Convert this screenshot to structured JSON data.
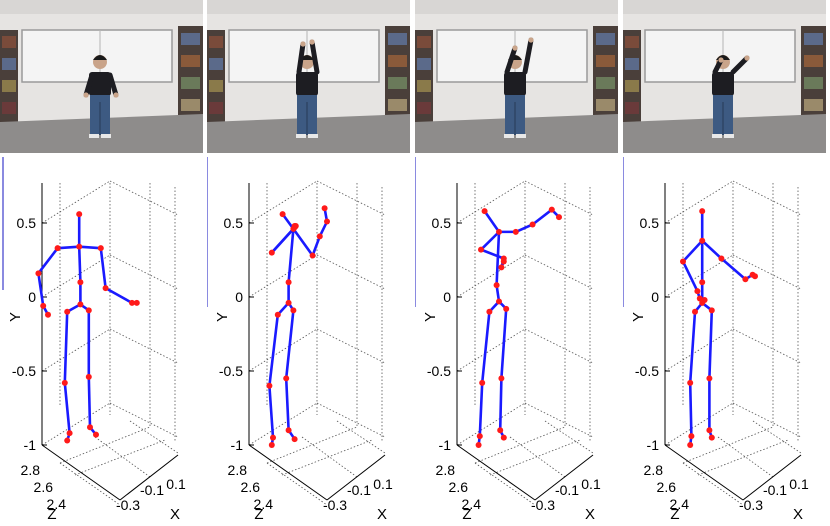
{
  "panels": [
    {
      "id": "frame-1",
      "photo": {
        "pose": "arms-down"
      },
      "skeleton": {
        "joints": {
          "head": [
            0.06,
            0.56,
            2.6
          ],
          "neck": [
            0.06,
            0.34,
            2.6
          ],
          "spine": [
            0.07,
            0.1,
            2.6
          ],
          "hip": [
            0.07,
            -0.05,
            2.6
          ],
          "l_shoulder": [
            -0.12,
            0.33,
            2.6
          ],
          "l_elbow": [
            -0.28,
            0.16,
            2.6
          ],
          "l_wrist": [
            -0.24,
            -0.06,
            2.6
          ],
          "l_hand": [
            -0.2,
            -0.12,
            2.6
          ],
          "r_shoulder": [
            0.24,
            0.33,
            2.6
          ],
          "r_elbow": [
            0.28,
            0.06,
            2.6
          ],
          "r_wrist": [
            0.5,
            -0.04,
            2.6
          ],
          "r_hand": [
            0.54,
            -0.04,
            2.6
          ],
          "l_hip": [
            -0.04,
            -0.1,
            2.6
          ],
          "l_knee": [
            -0.06,
            -0.58,
            2.6
          ],
          "l_ankle": [
            -0.02,
            -0.92,
            2.6
          ],
          "l_foot": [
            -0.04,
            -0.97,
            2.6
          ],
          "r_hip": [
            0.14,
            -0.09,
            2.6
          ],
          "r_knee": [
            0.14,
            -0.54,
            2.6
          ],
          "r_ankle": [
            0.15,
            -0.88,
            2.6
          ],
          "r_foot": [
            0.2,
            -0.93,
            2.6
          ]
        }
      }
    },
    {
      "id": "frame-2",
      "photo": {
        "pose": "arms-up"
      },
      "skeleton": {
        "joints": {
          "head": [
            0.03,
            0.56,
            2.6
          ],
          "neck": [
            0.12,
            0.46,
            2.6
          ],
          "spine": [
            0.08,
            0.1,
            2.6
          ],
          "hip": [
            0.08,
            -0.04,
            2.6
          ],
          "l_shoulder": [
            -0.06,
            0.3,
            2.6
          ],
          "l_elbow": [
            0.13,
            0.47,
            2.6
          ],
          "l_wrist": [
            0.14,
            0.48,
            2.6
          ],
          "l_hand": [
            0.13,
            0.48,
            2.6
          ],
          "r_shoulder": [
            0.28,
            0.28,
            2.6
          ],
          "r_elbow": [
            0.34,
            0.41,
            2.6
          ],
          "r_wrist": [
            0.4,
            0.51,
            2.6
          ],
          "r_hand": [
            0.38,
            0.6,
            2.6
          ],
          "l_hip": [
            -0.01,
            -0.12,
            2.6
          ],
          "l_knee": [
            -0.08,
            -0.6,
            2.6
          ],
          "l_ankle": [
            -0.05,
            -0.95,
            2.6
          ],
          "l_foot": [
            -0.06,
            -1.0,
            2.6
          ],
          "r_hip": [
            0.12,
            -0.09,
            2.6
          ],
          "r_knee": [
            0.06,
            -0.55,
            2.6
          ],
          "r_ankle": [
            0.08,
            -0.9,
            2.6
          ],
          "r_foot": [
            0.13,
            -0.96,
            2.6
          ]
        }
      }
    },
    {
      "id": "frame-3",
      "photo": {
        "pose": "arm-raised"
      },
      "skeleton": {
        "joints": {
          "head": [
            -0.02,
            0.58,
            2.6
          ],
          "neck": [
            0.1,
            0.44,
            2.6
          ],
          "spine": [
            0.08,
            0.08,
            2.6
          ],
          "hip": [
            0.1,
            -0.03,
            2.6
          ],
          "l_shoulder": [
            -0.05,
            0.32,
            2.6
          ],
          "l_elbow": [
            0.14,
            0.26,
            2.6
          ],
          "l_wrist": [
            0.12,
            0.2,
            2.6
          ],
          "l_hand": [
            0.14,
            0.24,
            2.6
          ],
          "r_shoulder": [
            0.24,
            0.44,
            2.6
          ],
          "r_elbow": [
            0.38,
            0.49,
            2.6
          ],
          "r_wrist": [
            0.54,
            0.59,
            2.6
          ],
          "r_hand": [
            0.6,
            0.54,
            2.6
          ],
          "l_hip": [
            0.02,
            -0.1,
            2.6
          ],
          "l_knee": [
            -0.04,
            -0.58,
            2.6
          ],
          "l_ankle": [
            -0.06,
            -0.94,
            2.6
          ],
          "l_foot": [
            -0.07,
            -1.0,
            2.6
          ],
          "r_hip": [
            0.16,
            -0.08,
            2.6
          ],
          "r_knee": [
            0.12,
            -0.55,
            2.6
          ],
          "r_ankle": [
            0.11,
            -0.9,
            2.6
          ],
          "r_foot": [
            0.14,
            -0.95,
            2.6
          ]
        }
      }
    },
    {
      "id": "frame-4",
      "photo": {
        "pose": "arm-out"
      },
      "skeleton": {
        "joints": {
          "head": [
            0.06,
            0.58,
            2.6
          ],
          "neck": [
            0.06,
            0.38,
            2.6
          ],
          "spine": [
            0.06,
            0.1,
            2.6
          ],
          "hip": [
            0.06,
            -0.04,
            2.6
          ],
          "l_shoulder": [
            -0.1,
            0.24,
            2.6
          ],
          "l_elbow": [
            0.02,
            0.04,
            2.6
          ],
          "l_wrist": [
            0.04,
            -0.01,
            2.6
          ],
          "l_hand": [
            0.08,
            -0.02,
            2.6
          ],
          "r_shoulder": [
            0.22,
            0.26,
            2.6
          ],
          "r_elbow": [
            0.42,
            0.12,
            2.6
          ],
          "r_wrist": [
            0.48,
            0.15,
            2.6
          ],
          "r_hand": [
            0.5,
            0.14,
            2.6
          ],
          "l_hip": [
            0.0,
            -0.1,
            2.6
          ],
          "l_knee": [
            -0.04,
            -0.58,
            2.6
          ],
          "l_ankle": [
            -0.03,
            -0.94,
            2.6
          ],
          "l_foot": [
            -0.04,
            -1.0,
            2.6
          ],
          "r_hip": [
            0.14,
            -0.09,
            2.6
          ],
          "r_knee": [
            0.12,
            -0.55,
            2.6
          ],
          "r_ankle": [
            0.12,
            -0.9,
            2.6
          ],
          "r_foot": [
            0.14,
            -0.95,
            2.6
          ]
        }
      }
    }
  ],
  "bones": [
    [
      "head",
      "neck"
    ],
    [
      "neck",
      "spine"
    ],
    [
      "spine",
      "hip"
    ],
    [
      "neck",
      "l_shoulder"
    ],
    [
      "l_shoulder",
      "l_elbow"
    ],
    [
      "l_elbow",
      "l_wrist"
    ],
    [
      "l_wrist",
      "l_hand"
    ],
    [
      "neck",
      "r_shoulder"
    ],
    [
      "r_shoulder",
      "r_elbow"
    ],
    [
      "r_elbow",
      "r_wrist"
    ],
    [
      "r_wrist",
      "r_hand"
    ],
    [
      "hip",
      "l_hip"
    ],
    [
      "l_hip",
      "l_knee"
    ],
    [
      "l_knee",
      "l_ankle"
    ],
    [
      "l_ankle",
      "l_foot"
    ],
    [
      "hip",
      "r_hip"
    ],
    [
      "r_hip",
      "r_knee"
    ],
    [
      "r_knee",
      "r_ankle"
    ],
    [
      "r_ankle",
      "r_foot"
    ]
  ],
  "axes": {
    "y": {
      "label": "Y",
      "ticks": [
        "0.5",
        "0",
        "-0.5",
        "-1"
      ],
      "values": [
        0.5,
        0,
        -0.5,
        -1
      ]
    },
    "z": {
      "label": "Z",
      "ticks": [
        "2.8",
        "2.6",
        "2.4"
      ],
      "values": [
        2.8,
        2.6,
        2.4
      ]
    },
    "x": {
      "label": "X",
      "ticks": [
        "-0.3",
        "-0.1",
        "0.1"
      ],
      "values": [
        -0.3,
        -0.1,
        0.1
      ]
    }
  },
  "colors": {
    "bone": "#1a1aff",
    "joint": "#ff1a1a",
    "axis": "#000000",
    "grid": "#555555",
    "accent_bar": "#8a8ae0",
    "wall": "#e6e4e2",
    "whiteboard": "#f4f4f4",
    "floor": "#8e8c8b",
    "shelf": "#4a3f3a",
    "shirt": "#1d1d22",
    "jeans": "#3d5a82",
    "skin": "#c9a48a"
  }
}
